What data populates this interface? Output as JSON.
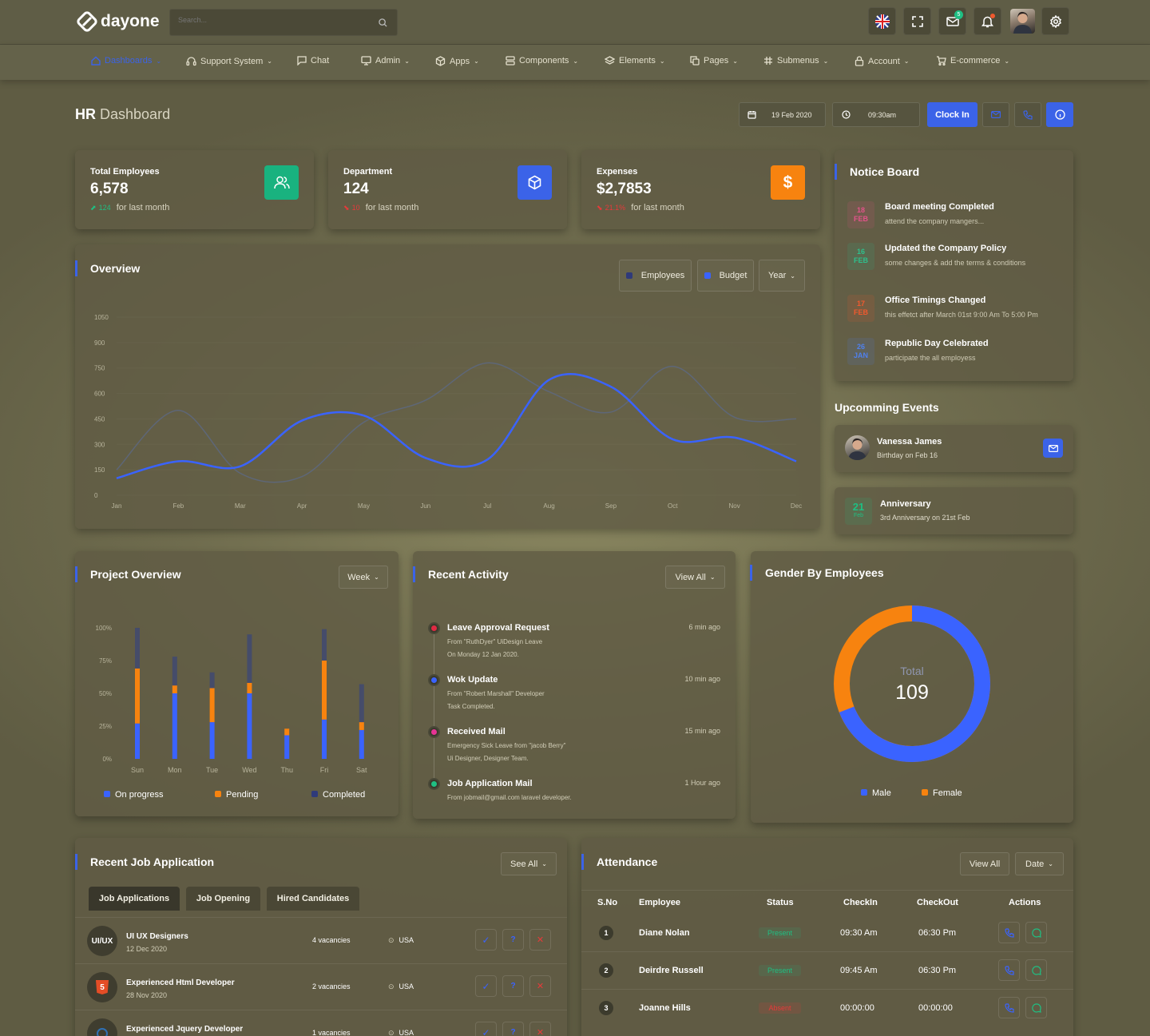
{
  "header": {
    "brand": "dayone",
    "search_placeholder": "Search...",
    "mail_badge": "5",
    "nav": [
      "Dashboards",
      "Support System",
      "Chat",
      "Admin",
      "Apps",
      "Components",
      "Elements",
      "Pages",
      "Submenus",
      "Account",
      "E-commerce"
    ]
  },
  "page": {
    "title_strong": "HR",
    "title_rest": "Dashboard",
    "date": "19 Feb 2020",
    "time": "09:30am",
    "clock_in": "Clock In"
  },
  "stats": [
    {
      "label": "Total Employees",
      "value": "6,578",
      "delta": "124",
      "note": "for last month",
      "color": "#19b27f"
    },
    {
      "label": "Department",
      "value": "124",
      "delta": "10",
      "note": "for last month",
      "color": "#3b63e8"
    },
    {
      "label": "Expenses",
      "value": "$2,7853",
      "delta": "21.1%",
      "note": "for last month",
      "color": "#f7830f"
    }
  ],
  "overview": {
    "title": "Overview",
    "legend_employees": "Employees",
    "legend_budget": "Budget",
    "filter": "Year"
  },
  "chart_data": {
    "type": "line",
    "categories": [
      "Jan",
      "Feb",
      "Mar",
      "Apr",
      "May",
      "Jun",
      "Jul",
      "Aug",
      "Sep",
      "Oct",
      "Nov",
      "Dec"
    ],
    "ylim": [
      0,
      1050
    ],
    "yticks": [
      0,
      150,
      300,
      450,
      600,
      750,
      900,
      1050
    ],
    "series": [
      {
        "name": "Employees",
        "color": "#3a63ff",
        "values": [
          100,
          200,
          170,
          440,
          470,
          220,
          210,
          680,
          640,
          330,
          340,
          200
        ]
      },
      {
        "name": "Budget",
        "color": "#5c6a88",
        "values": [
          150,
          500,
          130,
          110,
          430,
          560,
          780,
          610,
          490,
          760,
          460,
          450
        ]
      }
    ]
  },
  "notice": {
    "title": "Notice Board",
    "items": [
      {
        "day": "18",
        "mon": "FEB",
        "title": "Board meeting Completed",
        "sub": "attend the company mangers...",
        "color": "#e2538a"
      },
      {
        "day": "16",
        "mon": "FEB",
        "title": "Updated the Company Policy",
        "sub": "some changes & add the terms & conditions",
        "color": "#2fbf8c"
      },
      {
        "day": "17",
        "mon": "FEB",
        "title": "Office Timings Changed",
        "sub": "this effetct after March 01st 9:00 Am To 5:00 Pm",
        "color": "#f0592e"
      },
      {
        "day": "26",
        "mon": "JAN",
        "title": "Republic Day Celebrated",
        "sub": "participate the all employess",
        "color": "#4f80ee"
      }
    ]
  },
  "events": {
    "title": "Upcomming Events",
    "e1_name": "Vanessa James",
    "e1_sub": "Birthday on Feb 16",
    "e2_day": "21",
    "e2_mon": "Feb",
    "e2_name": "Anniversary",
    "e2_sub": "3rd Anniversary on 21st Feb"
  },
  "project": {
    "title": "Project Overview",
    "filter": "Week",
    "days": [
      "Sun",
      "Mon",
      "Tue",
      "Wed",
      "Thu",
      "Fri",
      "Sat"
    ],
    "yticks": [
      "0%",
      "25%",
      "50%",
      "75%",
      "100%"
    ],
    "on_progress": [
      27,
      50,
      28,
      50,
      18,
      30,
      22
    ],
    "pending": [
      42,
      6,
      26,
      8,
      5,
      45,
      6
    ],
    "completed": [
      31,
      22,
      12,
      37,
      0,
      24,
      29
    ],
    "legend": [
      "On progress",
      "Pending",
      "Completed"
    ]
  },
  "activity": {
    "title": "Recent Activity",
    "btn": "View All",
    "items": [
      {
        "title": "Leave Approval Request",
        "time": "6 min ago",
        "l1": "From \"RuthDyer\" UiDesign Leave",
        "l2": "On Monday 12 Jan 2020.",
        "color": "#e02a43"
      },
      {
        "title": "Wok Update",
        "time": "10 min ago",
        "l1": "From \"Robert Marshall\" Developer",
        "l2": "Task Completed.",
        "color": "#3a63ff"
      },
      {
        "title": "Received Mail",
        "time": "15 min ago",
        "l1": "Emergency Sick Leave from \"jacob Berry\"",
        "l2": "Ui Designer, Designer Team.",
        "color": "#e63394"
      },
      {
        "title": "Job Application Mail",
        "time": "1 Hour ago",
        "l1": "From jobmail@gmail.com laravel developer.",
        "l2": "",
        "color": "#1fbf83"
      }
    ]
  },
  "gender": {
    "title": "Gender By Employees",
    "total_label": "Total",
    "total": "109",
    "male_pct": 69,
    "legend_male": "Male",
    "legend_female": "Female"
  },
  "jobs": {
    "title": "Recent Job Application",
    "btn": "See All",
    "tabs": [
      "Job Applications",
      "Job Opening",
      "Hired Candidates"
    ],
    "rows": [
      {
        "avatar": "UI/UX",
        "title": "UI UX Designers",
        "date": "12 Dec 2020",
        "vac": "4 vacancies",
        "loc": "USA"
      },
      {
        "avatar": "5",
        "title": "Experienced Html Developer",
        "date": "28 Nov 2020",
        "vac": "2 vacancies",
        "loc": "USA"
      },
      {
        "avatar": "",
        "title": "Experienced Jquery Developer",
        "date": "",
        "vac": "1 vacancies",
        "loc": "USA"
      }
    ]
  },
  "attendance": {
    "title": "Attendance",
    "btn_view": "View All",
    "btn_date": "Date",
    "cols": [
      "S.No",
      "Employee",
      "Status",
      "CheckIn",
      "CheckOut",
      "Actions"
    ],
    "rows": [
      {
        "no": "1",
        "name": "Diane Nolan",
        "status": "Present",
        "in": "09:30 Am",
        "out": "06:30 Pm"
      },
      {
        "no": "2",
        "name": "Deirdre Russell",
        "status": "Present",
        "in": "09:45 Am",
        "out": "06:30 Pm"
      },
      {
        "no": "3",
        "name": "Joanne Hills",
        "status": "Absent",
        "in": "00:00:00",
        "out": "00:00:00"
      }
    ]
  }
}
